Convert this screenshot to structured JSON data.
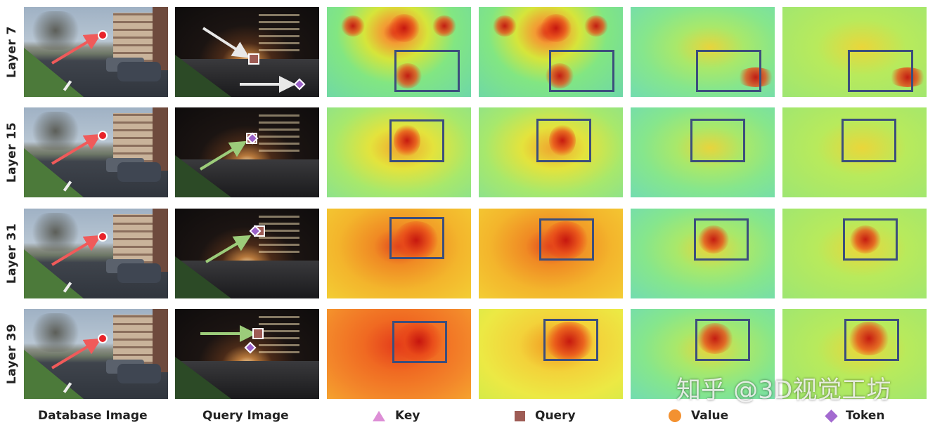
{
  "rows": [
    {
      "label": "Layer 7"
    },
    {
      "label": "Layer 15"
    },
    {
      "label": "Layer 31"
    },
    {
      "label": "Layer 39"
    }
  ],
  "columns": {
    "database": "Database Image",
    "query": "Query Image",
    "key": "Key",
    "query_attn": "Query",
    "value": "Value",
    "token": "Token"
  },
  "legend_colors": {
    "key": "#dd8ed6",
    "query": "#9e5c55",
    "value": "#f39130",
    "token": "#a36ad0",
    "box": "#3c4e7c",
    "arrow_red": "#f05a5a",
    "arrow_green": "#9ccc7a",
    "arrow_white": "#e8e8e8"
  },
  "watermark": "知乎 @3D视觉工坊"
}
